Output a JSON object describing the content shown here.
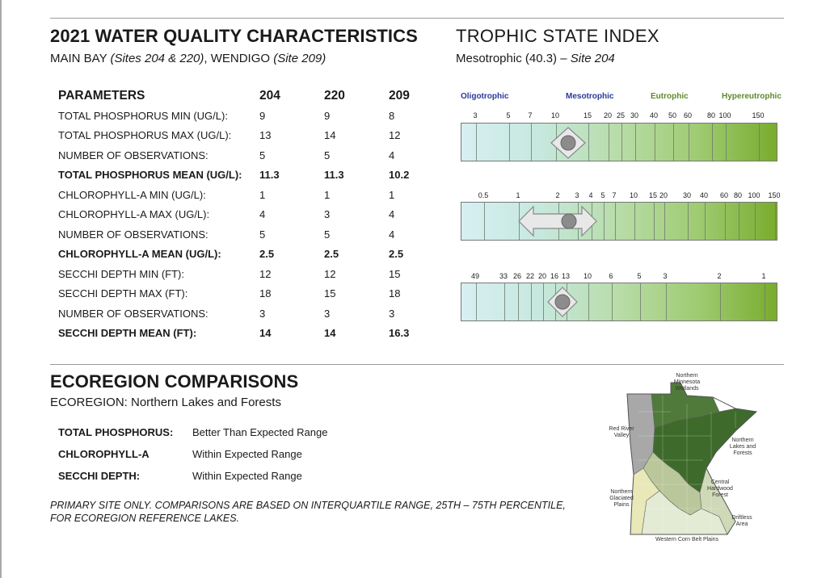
{
  "header": {
    "title": "2021 WATER QUALITY CHARACTERISTICS",
    "subtitle_main": "MAIN BAY ",
    "subtitle_main_sites": "(Sites 204 & 220)",
    "subtitle_sep": ", WENDIGO ",
    "subtitle_wendigo_site": "(Site 209)"
  },
  "tsi": {
    "title": "TROPHIC STATE INDEX",
    "state": "Mesotrophic (40.3) – ",
    "site": "Site 204",
    "categories": [
      "Oligotrophic",
      "Mesotrophic",
      "Eutrophic",
      "Hypereutrophic"
    ],
    "category_colors": [
      "#2a3a9a",
      "#2a3a9a",
      "#5e8a2a",
      "#5e8a2a"
    ],
    "phosphorus_ticks": [
      "3",
      "5",
      "7",
      "10",
      "15",
      "20",
      "25",
      "30",
      "40",
      "50",
      "60",
      "80",
      "100",
      "150"
    ],
    "chlorophyll_ticks": [
      "0.5",
      "1",
      "2",
      "3",
      "4",
      "5",
      "7",
      "10",
      "15",
      "20",
      "30",
      "40",
      "60",
      "80",
      "100",
      "150"
    ],
    "secchi_ticks": [
      "49",
      "33",
      "26",
      "22",
      "20",
      "16",
      "13",
      "10",
      "6",
      "5",
      "3",
      "2",
      "1"
    ],
    "indicator_fraction": 0.34
  },
  "params": {
    "headers": [
      "PARAMETERS",
      "204",
      "220",
      "209"
    ],
    "rows": [
      {
        "label": "TOTAL PHOSPHORUS MIN (UG/L):",
        "v204": "9",
        "v220": "9",
        "v209": "8",
        "mean": false
      },
      {
        "label": "TOTAL PHOSPHORUS MAX (UG/L):",
        "v204": "13",
        "v220": "14",
        "v209": "12",
        "mean": false
      },
      {
        "label": "NUMBER OF OBSERVATIONS:",
        "v204": "5",
        "v220": "5",
        "v209": "4",
        "mean": false
      },
      {
        "label": "TOTAL PHOSPHORUS MEAN (UG/L):",
        "v204": "11.3",
        "v220": "11.3",
        "v209": "10.2",
        "mean": true
      },
      {
        "label": "CHLOROPHYLL-A MIN (UG/L):",
        "v204": "1",
        "v220": "1",
        "v209": "1",
        "mean": false
      },
      {
        "label": "CHLOROPHYLL-A MAX (UG/L):",
        "v204": "4",
        "v220": "3",
        "v209": "4",
        "mean": false
      },
      {
        "label": "NUMBER OF OBSERVATIONS:",
        "v204": "5",
        "v220": "5",
        "v209": "4",
        "mean": false
      },
      {
        "label": "CHLOROPHYLL-A MEAN (UG/L):",
        "v204": "2.5",
        "v220": "2.5",
        "v209": "2.5",
        "mean": true
      },
      {
        "label": "SECCHI DEPTH MIN (FT):",
        "v204": "12",
        "v220": "12",
        "v209": "15",
        "mean": false
      },
      {
        "label": "SECCHI DEPTH MAX (FT):",
        "v204": "18",
        "v220": "15",
        "v209": "18",
        "mean": false
      },
      {
        "label": "NUMBER OF OBSERVATIONS:",
        "v204": "3",
        "v220": "3",
        "v209": "3",
        "mean": false
      },
      {
        "label": "SECCHI DEPTH MEAN (FT):",
        "v204": "14",
        "v220": "14",
        "v209": "16.3",
        "mean": true
      }
    ]
  },
  "ecoregion": {
    "title": "ECOREGION COMPARISONS",
    "subtitle": "ECOREGION: Northern Lakes and Forests",
    "items": [
      {
        "label": "TOTAL PHOSPHORUS:",
        "value": "Better Than Expected Range"
      },
      {
        "label": "CHLOROPHYLL-A",
        "value": "Within Expected Range"
      },
      {
        "label": "SECCHI DEPTH:",
        "value": "Within Expected Range"
      }
    ],
    "note_line1": "PRIMARY SITE ONLY. COMPARISONS ARE BASED ON INTERQUARTILE RANGE, 25TH – 75TH PERCENTILE,",
    "note_line2": "FOR ECOREGION REFERENCE LAKES."
  },
  "map": {
    "labels": {
      "nmw": "Northern Minnesota Wetlands",
      "rrv": "Red River Valley",
      "nlf": "Northern Lakes and Forests",
      "chf": "Central Hardwood Forest",
      "ngp": "Northern Glaciated Plains",
      "da": "Driftless Area",
      "wcbp": "Western Corn Belt Plains"
    },
    "colors": {
      "nmw": "#4f7a3a",
      "nlf": "#3e6b2c",
      "rrv": "#a8a8a8",
      "chf": "#b9c79a",
      "ngp": "#e8e8b8",
      "wcbp": "#e3ebd4",
      "da": "#cfd9b8"
    }
  }
}
